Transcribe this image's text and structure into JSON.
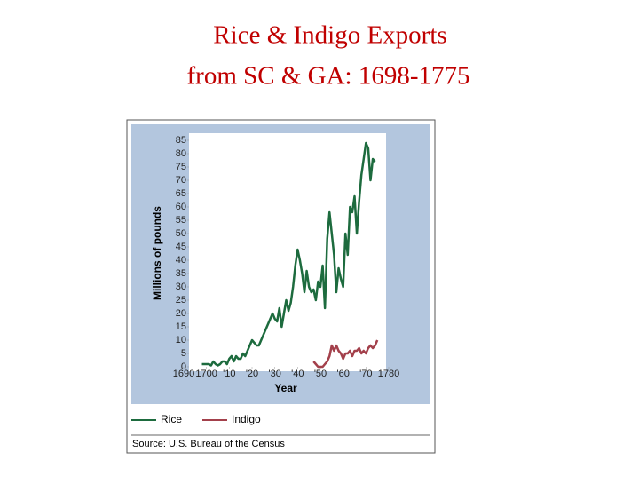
{
  "chart_data": {
    "type": "line",
    "title": "Rice & Indigo Exports",
    "subtitle": "from SC & GA:  1698-1775",
    "y_label": "Millions of pounds",
    "x_label": "Year",
    "source": "Source: U.S. Bureau of the Census",
    "x": [
      1698,
      1699,
      1700,
      1701,
      1702,
      1703,
      1704,
      1705,
      1706,
      1707,
      1708,
      1709,
      1710,
      1711,
      1712,
      1713,
      1714,
      1715,
      1716,
      1717,
      1718,
      1719,
      1720,
      1721,
      1722,
      1723,
      1724,
      1725,
      1726,
      1727,
      1728,
      1729,
      1730,
      1731,
      1732,
      1733,
      1734,
      1735,
      1736,
      1737,
      1738,
      1739,
      1740,
      1741,
      1742,
      1743,
      1744,
      1745,
      1746,
      1747,
      1748,
      1749,
      1750,
      1751,
      1752,
      1753,
      1754,
      1755,
      1756,
      1757,
      1758,
      1759,
      1760,
      1761,
      1762,
      1763,
      1764,
      1765,
      1766,
      1767,
      1768,
      1769,
      1770,
      1771,
      1772,
      1773,
      1774,
      1775
    ],
    "series": [
      {
        "name": "Rice",
        "color": "#1d6b3e",
        "values": [
          1,
          1,
          1,
          1,
          0.5,
          2,
          1,
          0.5,
          1,
          2,
          2,
          1,
          3,
          4,
          2,
          4,
          3,
          3,
          5,
          4,
          6,
          8,
          10,
          9,
          8,
          8,
          10,
          12,
          14,
          16,
          18,
          20,
          18,
          17,
          22,
          15,
          20,
          25,
          21,
          24,
          30,
          38,
          44,
          40,
          35,
          28,
          36,
          30,
          28,
          29,
          25,
          32,
          30,
          38,
          22,
          48,
          58,
          50,
          42,
          28,
          37,
          33,
          30,
          50,
          42,
          60,
          58,
          64,
          50,
          62,
          72,
          78,
          84,
          82,
          70,
          78,
          77,
          null
        ]
      },
      {
        "name": "Indigo",
        "color": "#a3404b",
        "values": [
          null,
          null,
          null,
          null,
          null,
          null,
          null,
          null,
          null,
          null,
          null,
          null,
          null,
          null,
          null,
          null,
          null,
          null,
          null,
          null,
          null,
          null,
          null,
          null,
          null,
          null,
          null,
          null,
          null,
          null,
          null,
          null,
          null,
          null,
          null,
          null,
          null,
          null,
          null,
          null,
          null,
          null,
          null,
          null,
          null,
          null,
          null,
          null,
          null,
          2,
          1,
          0,
          0,
          0,
          1,
          2,
          4,
          8,
          6,
          8,
          6,
          5,
          3,
          5,
          5,
          6,
          4,
          6,
          6,
          7,
          5,
          6,
          5,
          7,
          8,
          7,
          8,
          10
        ]
      }
    ],
    "xlim": [
      1690,
      1780
    ],
    "xticks": [
      1690,
      1700,
      {
        "value": 1710,
        "label": "'10"
      },
      {
        "value": 1720,
        "label": "'20"
      },
      {
        "value": 1730,
        "label": "'30"
      },
      {
        "value": 1740,
        "label": "'40"
      },
      {
        "value": 1750,
        "label": "'50"
      },
      {
        "value": 1760,
        "label": "'60"
      },
      {
        "value": 1770,
        "label": "'70"
      },
      1780
    ],
    "ylim": [
      0,
      85
    ],
    "yticks": [
      0,
      5,
      10,
      15,
      20,
      25,
      30,
      35,
      40,
      45,
      50,
      55,
      60,
      65,
      70,
      75,
      80,
      85
    ],
    "grid": false
  }
}
